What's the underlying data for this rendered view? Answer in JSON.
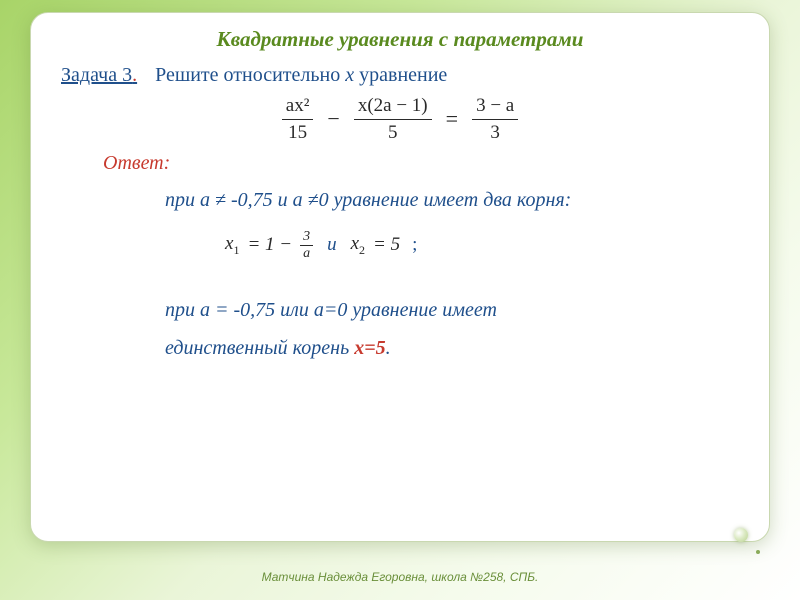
{
  "title": "Квадратные уравнения с параметрами",
  "task": {
    "label": "Задача 3",
    "dot": ".",
    "prompt_before": "Решите относительно ",
    "prompt_var": "x",
    "prompt_after": " уравнение"
  },
  "equation": {
    "t1_num": "ax²",
    "t1_den": "15",
    "minus": "−",
    "t2_num": "x(2a − 1)",
    "t2_den": "5",
    "eq": "=",
    "t3_num": "3 − a",
    "t3_den": "3"
  },
  "answer_label": "Ответ:",
  "case1": "при а ≠ -0,75 и  а ≠0 уравнение имеет два корня:",
  "roots": {
    "x1": "x",
    "s1": "1",
    "eq1": " = 1 − ",
    "frac_n": "3",
    "frac_d": "a",
    "conn": "и",
    "x2": "x",
    "s2": "2",
    "eq2": " = 5",
    "semi": ";"
  },
  "case2a": "при а = -0,75 или а=0 уравнение имеет",
  "case2b_before": "единственный корень ",
  "case2b_root": "х=5",
  "case2b_after": ".",
  "footer": "Матчина Надежда Егоровна, школа №258, СПБ.",
  "colors": {
    "title": "#5a8a1f",
    "blue": "#1f4f8b",
    "red": "#c73a2e",
    "grad_start": "#a8d468",
    "grad_end": "#ffffff"
  }
}
